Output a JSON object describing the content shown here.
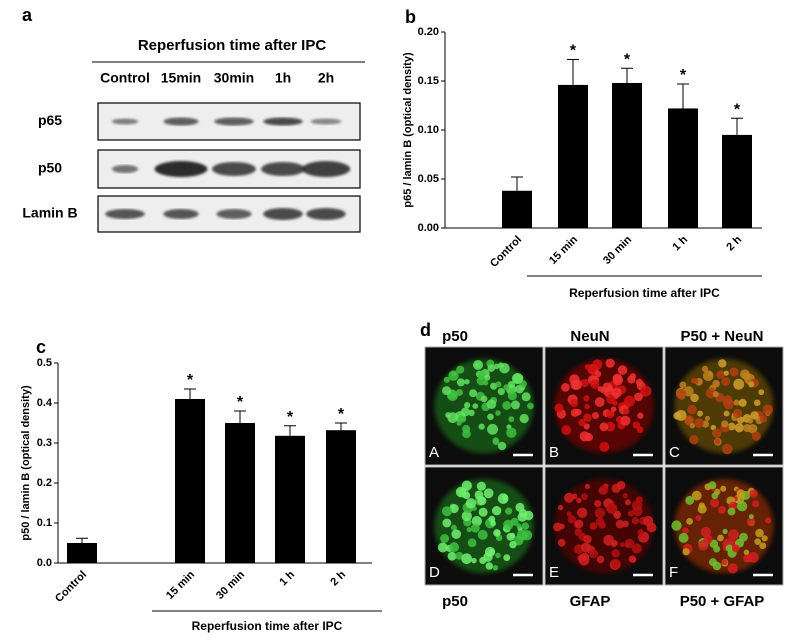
{
  "panel_a": {
    "label": "a",
    "title": "Reperfusion time after IPC",
    "lanes": [
      "Control",
      "15min",
      "30min",
      "1h",
      "2h"
    ],
    "rows": [
      "p65",
      "p50",
      "Lamin B"
    ]
  },
  "chart_data": [
    {
      "panel": "b",
      "type": "bar",
      "ylabel": "p65 / lamin B (optical density)",
      "xlabel": "Reperfusion time after IPC",
      "categories": [
        "Control",
        "15 min",
        "30 min",
        "1 h",
        "2 h"
      ],
      "values": [
        0.038,
        0.146,
        0.148,
        0.122,
        0.095
      ],
      "errors": [
        0.014,
        0.026,
        0.015,
        0.025,
        0.017
      ],
      "annotations": [
        null,
        "*",
        "*",
        "*",
        "*"
      ],
      "color": "#000000",
      "ylim": [
        0,
        0.2
      ],
      "yticks": [
        {
          "value": 0,
          "label": "0.00"
        },
        0.05,
        {
          "value": 0.1,
          "label": "0.10"
        },
        0.15,
        {
          "value": 0.2,
          "label": "0.20"
        }
      ]
    },
    {
      "panel": "c",
      "type": "bar",
      "ylabel": "p50 / lamin B (optical density)",
      "xlabel": "Reperfusion time after IPC",
      "categories": [
        "Control",
        "15 min",
        "30 min",
        "1 h",
        "2 h"
      ],
      "values": [
        0.05,
        0.41,
        0.35,
        0.318,
        0.332
      ],
      "errors": [
        0.012,
        0.025,
        0.03,
        0.025,
        0.018
      ],
      "annotations": [
        null,
        "*",
        "*",
        "*",
        "*"
      ],
      "color": "#000000",
      "ylim": [
        0,
        0.5
      ],
      "yticks": [
        {
          "value": 0,
          "label": "0.0"
        },
        0.1,
        0.2,
        0.3,
        0.4,
        0.5
      ]
    }
  ],
  "panel_d": {
    "label": "d",
    "top_labels": [
      "p50",
      "NeuN",
      "P50 + NeuN"
    ],
    "bottom_labels": [
      "p50",
      "GFAP",
      "P50 + GFAP"
    ],
    "letters": [
      "A",
      "B",
      "C",
      "D",
      "E",
      "F"
    ]
  }
}
